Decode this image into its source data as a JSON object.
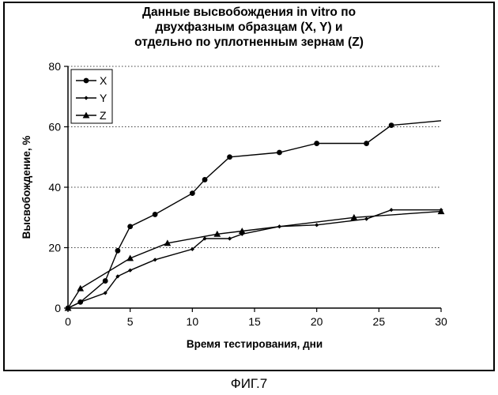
{
  "caption": "ФИГ.7",
  "chart_data": {
    "type": "line",
    "title": "Данные высвобождения in vitro по\nдвухфазным образцам (X, Y) и\nотдельно по уплотненным зернам (Z)",
    "xlabel": "Время тестирования, дни",
    "ylabel": "Высвобождение, %",
    "xlim": [
      0,
      30
    ],
    "ylim": [
      0,
      80
    ],
    "xticks": [
      0,
      5,
      10,
      15,
      20,
      25,
      30
    ],
    "yticks": [
      0,
      20,
      40,
      60,
      80
    ],
    "grid": "horizontal dotted",
    "legend_position": "top-left",
    "series": [
      {
        "name": "X",
        "marker": "circle",
        "points": [
          [
            0,
            0
          ],
          [
            1,
            2
          ],
          [
            3,
            9
          ],
          [
            4,
            19
          ],
          [
            5,
            27
          ],
          [
            7,
            31
          ],
          [
            10,
            38
          ],
          [
            11,
            42.5
          ],
          [
            13,
            50
          ],
          [
            17,
            51.5
          ],
          [
            20,
            54.5
          ],
          [
            24,
            54.5
          ],
          [
            26,
            60.5
          ],
          [
            30,
            62
          ]
        ],
        "markers_at": [
          0,
          1,
          3,
          4,
          5,
          7,
          10,
          11,
          13,
          17,
          20,
          24,
          26
        ]
      },
      {
        "name": "Y",
        "marker": "small-diamond",
        "points": [
          [
            0,
            0
          ],
          [
            1,
            2
          ],
          [
            3,
            5
          ],
          [
            4,
            10.5
          ],
          [
            5,
            12.5
          ],
          [
            7,
            16
          ],
          [
            10,
            19.5
          ],
          [
            11,
            23
          ],
          [
            13,
            23
          ],
          [
            14,
            24.5
          ],
          [
            17,
            27
          ],
          [
            20,
            27.5
          ],
          [
            24,
            29.5
          ],
          [
            26,
            32.5
          ],
          [
            30,
            32.5
          ]
        ],
        "markers_at": [
          0,
          1,
          3,
          4,
          5,
          7,
          10,
          11,
          13,
          14,
          17,
          20,
          24,
          26,
          30
        ]
      },
      {
        "name": "Z",
        "marker": "triangle",
        "points": [
          [
            0,
            0
          ],
          [
            1,
            6.5
          ],
          [
            5,
            16.5
          ],
          [
            8,
            21.5
          ],
          [
            12,
            24.5
          ],
          [
            14,
            25.5
          ],
          [
            23,
            30
          ],
          [
            30,
            32
          ]
        ],
        "markers_at": [
          0,
          1,
          5,
          8,
          12,
          14,
          23,
          30
        ]
      }
    ]
  }
}
